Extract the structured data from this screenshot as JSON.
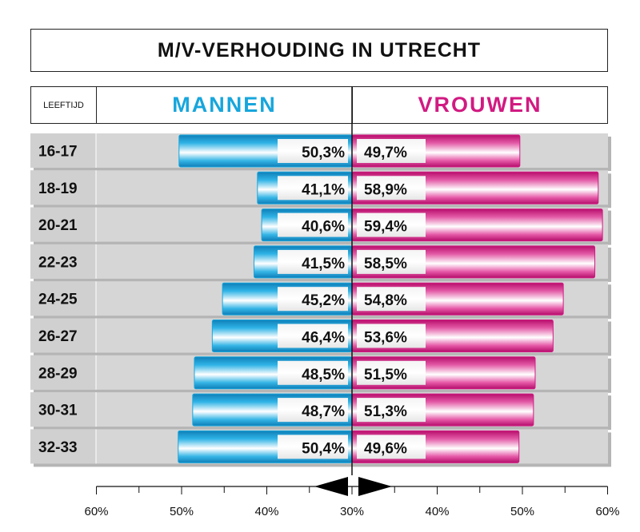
{
  "title": "M/V-VERHOUDING IN UTRECHT",
  "header": {
    "age_label": "LEEFTIJD",
    "men_label": "MANNEN",
    "women_label": "VROUWEN"
  },
  "colors": {
    "men": "#17a6dc",
    "women": "#d11a82",
    "row_bg": "#d6d6d6"
  },
  "chart_data": {
    "type": "bar",
    "subtype": "butterfly",
    "categories": [
      "16-17",
      "18-19",
      "20-21",
      "22-23",
      "24-25",
      "26-27",
      "28-29",
      "30-31",
      "32-33"
    ],
    "series": [
      {
        "name": "MANNEN",
        "values": [
          50.3,
          41.1,
          40.6,
          41.5,
          45.2,
          46.4,
          48.5,
          48.7,
          50.4
        ],
        "labels": [
          "50,3%",
          "41,1%",
          "40,6%",
          "41,5%",
          "45,2%",
          "46,4%",
          "48,5%",
          "48,7%",
          "50,4%"
        ]
      },
      {
        "name": "VROUWEN",
        "values": [
          49.7,
          58.9,
          59.4,
          58.5,
          54.8,
          53.6,
          51.5,
          51.3,
          49.6
        ],
        "labels": [
          "49,7%",
          "58,9%",
          "59,4%",
          "58,5%",
          "54,8%",
          "53,6%",
          "51,5%",
          "51,3%",
          "49,6%"
        ]
      }
    ],
    "xlim": [
      30,
      60
    ],
    "x_ticks": [
      60,
      50,
      40,
      30,
      40,
      50,
      60
    ],
    "x_tick_labels": [
      "60%",
      "50%",
      "40%",
      "30%",
      "40%",
      "50%",
      "60%"
    ],
    "legend": "header"
  }
}
